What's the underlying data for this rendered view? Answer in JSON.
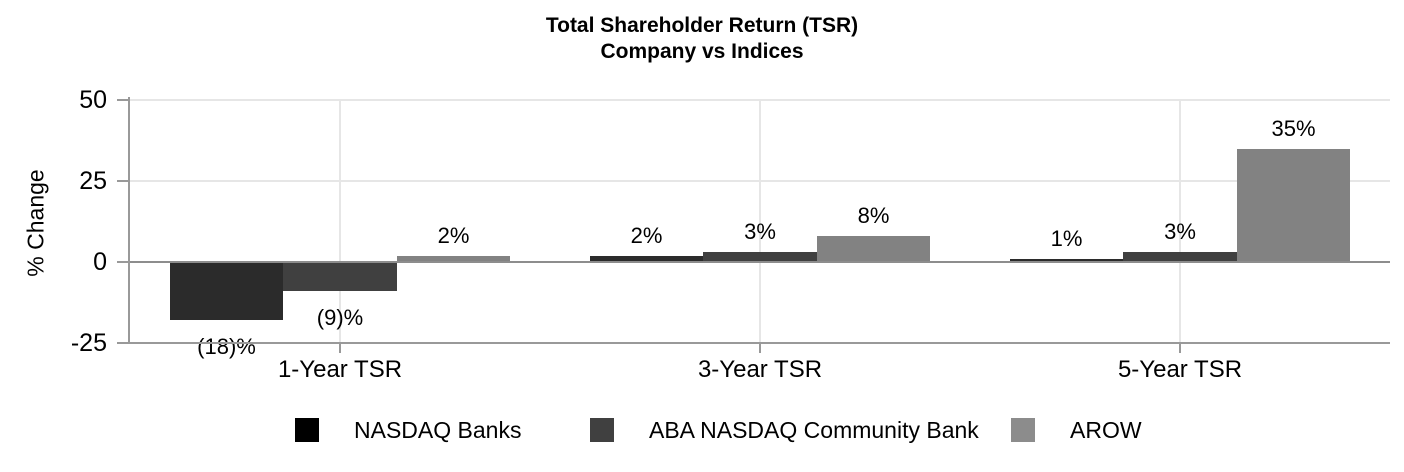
{
  "title": {
    "line1": "Total Shareholder Return (TSR)",
    "line2": "Company vs Indices"
  },
  "chart_data": {
    "type": "bar",
    "title": "Total Shareholder Return (TSR) Company vs Indices",
    "ylabel": "% Change",
    "xlabel": "",
    "ylim": [
      -25,
      50
    ],
    "yticks": [
      50,
      25,
      0,
      -25
    ],
    "ytick_labels": [
      "50",
      "25",
      "0",
      "-25"
    ],
    "grid": true,
    "legend_position": "bottom",
    "categories": [
      "1-Year TSR",
      "3-Year TSR",
      "5-Year TSR"
    ],
    "series": [
      {
        "name": "NASDAQ Banks",
        "values": [
          -18,
          2,
          1
        ],
        "labels": [
          "(18)%",
          "2%",
          "1%"
        ],
        "bar_color": "#2b2b2b",
        "legend_color": "#000000"
      },
      {
        "name": "ABA NASDAQ Community Bank",
        "values": [
          -9,
          3,
          3
        ],
        "labels": [
          "(9)%",
          "3%",
          "3%"
        ],
        "bar_color": "#404040",
        "legend_color": "#404040"
      },
      {
        "name": "AROW",
        "values": [
          2,
          8,
          35
        ],
        "labels": [
          "2%",
          "8%",
          "35%"
        ],
        "bar_color": "#828282",
        "legend_color": "#8c8c8c"
      }
    ],
    "colors": {
      "background": "#ffffff",
      "text": "#000000",
      "grid": "#e6e6e6",
      "axis": "#999999",
      "zero_line": "#8d8d8d"
    }
  }
}
